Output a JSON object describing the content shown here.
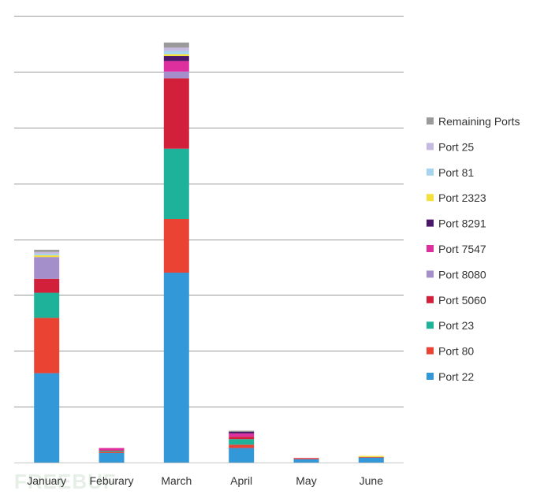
{
  "watermark": "FREEBUF",
  "chart_data": {
    "type": "bar",
    "stacked": true,
    "categories": [
      "January",
      "Feburary",
      "March",
      "April",
      "May",
      "June"
    ],
    "ylim": [
      0,
      8
    ],
    "gridlines": 8,
    "grid": true,
    "legend_position": "right",
    "series": [
      {
        "name": "Port 22",
        "color": "#3398d8",
        "values": [
          1.6,
          0.17,
          3.4,
          0.26,
          0.06,
          0.09
        ]
      },
      {
        "name": "Port 80",
        "color": "#ea4333",
        "values": [
          0.99,
          0.02,
          0.96,
          0.06,
          0.01,
          0.01
        ]
      },
      {
        "name": "Port 23",
        "color": "#1fb29b",
        "values": [
          0.45,
          0.02,
          1.26,
          0.1,
          0.0,
          0.0
        ]
      },
      {
        "name": "Port 5060",
        "color": "#d21f3a",
        "values": [
          0.25,
          0.01,
          1.26,
          0.04,
          0.01,
          0.0
        ]
      },
      {
        "name": "Port 8080",
        "color": "#a48fca",
        "values": [
          0.39,
          0.0,
          0.12,
          0.0,
          0.0,
          0.0
        ]
      },
      {
        "name": "Port 7547",
        "color": "#de2f9e",
        "values": [
          0.0,
          0.04,
          0.19,
          0.06,
          0.0,
          0.0
        ]
      },
      {
        "name": "Port 8291",
        "color": "#4b1768",
        "values": [
          0.0,
          0.0,
          0.09,
          0.03,
          0.0,
          0.0
        ]
      },
      {
        "name": "Port 2323",
        "color": "#f5e03b",
        "values": [
          0.03,
          0.0,
          0.03,
          0.0,
          0.0,
          0.02
        ]
      },
      {
        "name": "Port 81",
        "color": "#a6d4ee",
        "values": [
          0.03,
          0.0,
          0.06,
          0.0,
          0.0,
          0.0
        ]
      },
      {
        "name": "Port 25",
        "color": "#c5b9e0",
        "values": [
          0.03,
          0.0,
          0.06,
          0.0,
          0.0,
          0.0
        ]
      },
      {
        "name": "Remaining Ports",
        "color": "#9a9a9a",
        "values": [
          0.04,
          0.0,
          0.09,
          0.02,
          0.0,
          0.0
        ]
      }
    ]
  }
}
